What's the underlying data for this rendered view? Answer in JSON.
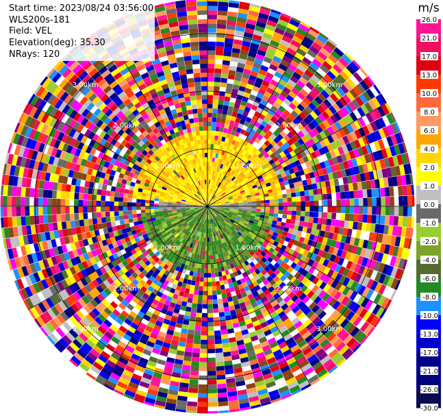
{
  "header": {
    "start_time": "Start time: 2023/08/24 03:56:00",
    "instrument": "WLS200s-181",
    "field": "Field: VEL",
    "elevation": "Elevation(deg): 35.30",
    "nrays": "NRays: 120"
  },
  "chart_data": {
    "type": "heatmap",
    "subtype": "ppi-polar",
    "field": "VEL",
    "units": "m/s",
    "nrays": 120,
    "elevation_deg": 35.3,
    "range_rings_km": [
      1,
      2,
      3
    ],
    "ring_labels": [
      "1.00km",
      "2.00km",
      "3.00km"
    ],
    "max_range_km": 3.6,
    "spoke_angles_deg": [
      0,
      30,
      60,
      90,
      120,
      150,
      180,
      210,
      240,
      270,
      300,
      330
    ],
    "colorbar": {
      "title": "m/s",
      "ticks": [
        "26.0",
        "21.0",
        "17.0",
        "13.0",
        "10.0",
        "8.0",
        "6.0",
        "4.0",
        "2.0",
        "1.0",
        "0.0",
        "-1.0",
        "-2.0",
        "-4.0",
        "-6.0",
        "-8.0",
        "-10.0",
        "-13.0",
        "-17.0",
        "-21.0",
        "-26.0",
        "-30.0"
      ],
      "colors": [
        "#ff1493",
        "#f01060",
        "#e00010",
        "#ff3a00",
        "#ff6a3d",
        "#ff9a60",
        "#ffa500",
        "#ffd700",
        "#ffff00",
        "#c0c0c0",
        "#696969",
        "#9acd32",
        "#7ba428",
        "#556b2f",
        "#228b22",
        "#1e90ff",
        "#0000ff",
        "#0000cd",
        "#00008b",
        "#000080",
        "#0a0a50"
      ]
    },
    "regions": {
      "north_near": {
        "range_km": [
          0,
          1.25
        ],
        "values": "1.0 to 6.0",
        "dominant": "positive"
      },
      "south_near": {
        "range_km": [
          0,
          1.15
        ],
        "values": "-1.0 to -6.0",
        "dominant": "negative"
      },
      "far": {
        "range_km": [
          1.25,
          3.6
        ],
        "values": "noise, full scale"
      }
    }
  }
}
